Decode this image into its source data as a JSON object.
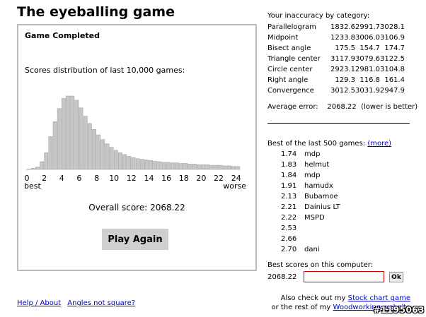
{
  "title": "The eyeballing game",
  "panel": {
    "heading": "Game Completed",
    "distribution_label": "Scores distribution of last 10,000 games:",
    "overall_label": "Overall score: 2068.22",
    "play_again": "Play Again"
  },
  "chart_data": {
    "type": "bar",
    "title": "",
    "xlabel": "",
    "ylabel": "",
    "x_ticks": [
      "0",
      "2",
      "4",
      "6",
      "8",
      "10",
      "12",
      "14",
      "16",
      "18",
      "20",
      "22",
      "24"
    ],
    "x_start_label": "best",
    "x_end_label": "worse",
    "bin_width": 0.5,
    "x_range": [
      0,
      25
    ],
    "values": [
      1,
      2,
      4,
      13,
      28,
      55,
      80,
      102,
      119,
      123,
      123,
      116,
      103,
      89,
      77,
      67,
      58,
      50,
      43,
      37,
      32,
      28,
      25,
      22,
      20,
      18,
      17,
      16,
      15,
      14,
      13,
      12,
      12,
      11,
      11,
      10,
      10,
      9,
      9,
      8,
      8,
      8,
      7,
      7,
      7,
      6,
      6,
      5,
      5
    ],
    "bar_color": "#c6c6c6",
    "grid": false
  },
  "inaccuracy": {
    "heading": "Your inaccuracy by category:",
    "rows": [
      {
        "name": "Parallelogram",
        "v1": "1832.6",
        "v2": "2991.7",
        "v3": "3028.1"
      },
      {
        "name": "Midpoint",
        "v1": "1233.8",
        "v2": "3006.0",
        "v3": "3106.9"
      },
      {
        "name": "Bisect angle",
        "v1": "175.5",
        "v2": "154.7",
        "v3": "174.7"
      },
      {
        "name": "Triangle center",
        "v1": "3117.9",
        "v2": "3079.6",
        "v3": "3122.5"
      },
      {
        "name": "Circle center",
        "v1": "2923.1",
        "v2": "2981.0",
        "v3": "3104.8"
      },
      {
        "name": "Right angle",
        "v1": "129.3",
        "v2": "116.8",
        "v3": "161.4"
      },
      {
        "name": "Convergence",
        "v1": "3012.5",
        "v2": "3031.9",
        "v3": "2947.9"
      }
    ],
    "average_label": "Average error:",
    "average_value": "2068.22",
    "average_note": "(lower is better)"
  },
  "best500": {
    "heading": "Best of the last 500 games:",
    "more_link": "(more)",
    "entries": [
      {
        "score": "1.74",
        "name": "mdp"
      },
      {
        "score": "1.83",
        "name": "helmut"
      },
      {
        "score": "1.84",
        "name": "mdp"
      },
      {
        "score": "1.91",
        "name": "hamudx"
      },
      {
        "score": "2.13",
        "name": "Bubamoe"
      },
      {
        "score": "2.21",
        "name": "Dainius LT"
      },
      {
        "score": "2.22",
        "name": "MSPD"
      },
      {
        "score": "2.53",
        "name": ""
      },
      {
        "score": "2.66",
        "name": ""
      },
      {
        "score": "2.70",
        "name": "dani"
      }
    ]
  },
  "computer": {
    "heading": "Best scores on this computer:",
    "score": "2068.22",
    "name_value": "",
    "ok_label": "Ok"
  },
  "links": {
    "help": "Help / About",
    "angles": "Angles not square?"
  },
  "also": {
    "line1_prefix": "Also check out my",
    "line1_link": "Stock chart game",
    "line2_prefix": "or the rest of my",
    "line2_link": "Woodworking website"
  },
  "watermark": "#1195063"
}
